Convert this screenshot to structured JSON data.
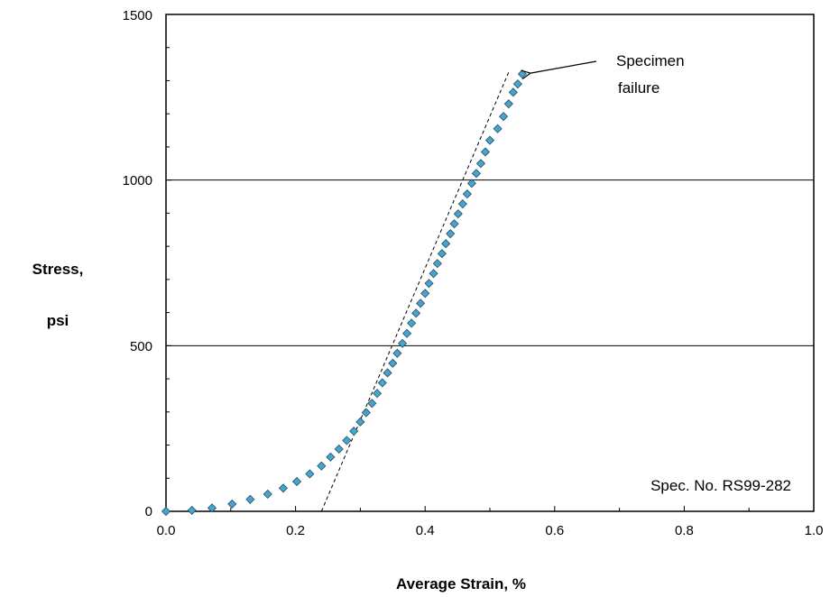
{
  "chart_data": {
    "type": "scatter",
    "title": "",
    "xlabel": "Average Strain, %",
    "ylabel_line1": "Stress,",
    "ylabel_line2": "psi",
    "xlim": [
      0.0,
      1.0
    ],
    "ylim": [
      0,
      1500
    ],
    "x_ticks": [
      "0.0",
      "0.2",
      "0.4",
      "0.6",
      "0.8",
      "1.0"
    ],
    "y_ticks": [
      "0",
      "500",
      "1000",
      "1500"
    ],
    "gridlines_y": [
      500,
      1000
    ],
    "marker_color": "#4aa3c9",
    "series": [
      {
        "x": [
          0.0,
          0.04,
          0.071,
          0.102,
          0.13,
          0.157,
          0.181,
          0.202,
          0.222,
          0.24,
          0.254,
          0.267,
          0.279,
          0.29,
          0.3,
          0.309,
          0.318,
          0.326,
          0.334,
          0.342,
          0.35,
          0.357,
          0.365,
          0.372,
          0.379,
          0.386,
          0.393,
          0.4,
          0.406,
          0.413,
          0.419,
          0.426,
          0.432,
          0.439,
          0.445,
          0.451,
          0.458,
          0.465,
          0.472,
          0.479,
          0.486,
          0.493,
          0.5,
          0.512,
          0.521,
          0.529,
          0.536,
          0.543,
          0.55
        ],
        "y": [
          0,
          3,
          10,
          22,
          36,
          52,
          70,
          90,
          113,
          137,
          164,
          188,
          214,
          242,
          270,
          298,
          326,
          356,
          388,
          418,
          447,
          477,
          507,
          537,
          568,
          598,
          628,
          658,
          688,
          718,
          748,
          778,
          808,
          838,
          868,
          898,
          928,
          958,
          990,
          1020,
          1050,
          1085,
          1120,
          1155,
          1192,
          1230,
          1265,
          1290,
          1320
        ]
      }
    ],
    "trendline": {
      "style": "dashed",
      "x": [
        0.24,
        0.53
      ],
      "y": [
        0,
        1330
      ]
    },
    "annotations": [
      {
        "line1": "Specimen",
        "line2": "failure",
        "target_x": 0.55,
        "target_y": 1320
      },
      {
        "text": "Spec. No. RS99-282"
      }
    ]
  }
}
